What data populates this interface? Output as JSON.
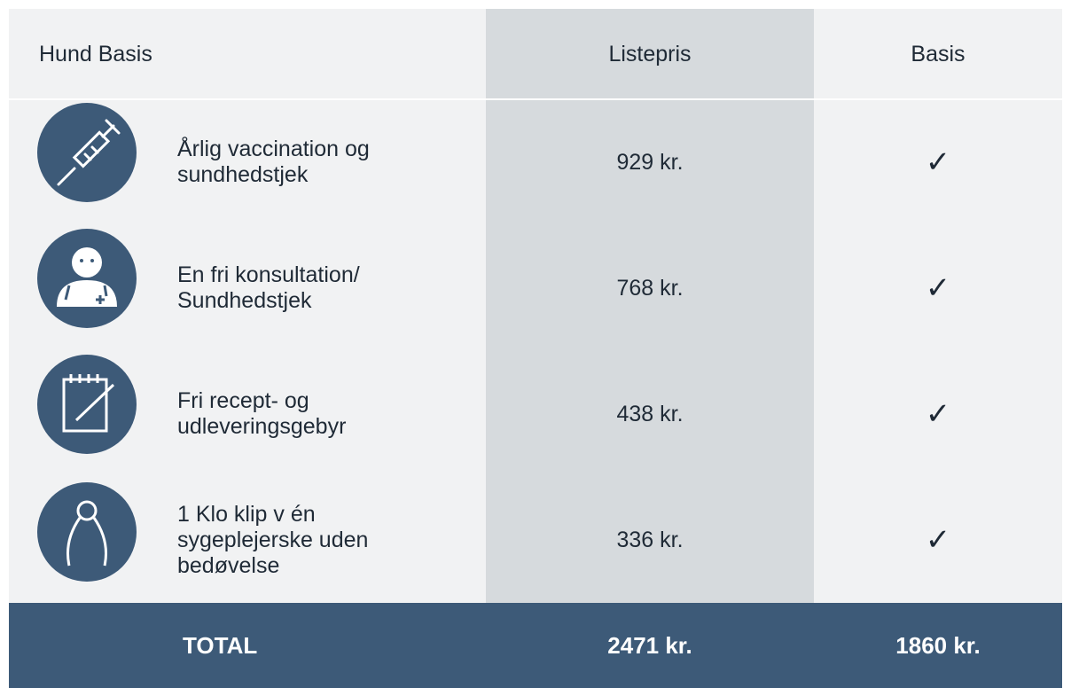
{
  "header": {
    "title": "Hund Basis",
    "columns": [
      "Listepris",
      "Basis"
    ]
  },
  "rows": [
    {
      "label": [
        "Årlig vaccination og",
        "sundhedstjek"
      ],
      "price": "929 kr.",
      "basis": "✓"
    },
    {
      "label": [
        "En fri konsultation/",
        "Sundhedstjek"
      ],
      "price": "768 kr.",
      "basis": "✓"
    },
    {
      "label": [
        "Fri recept- og",
        "udleveringsgebyr"
      ],
      "price": "438 kr.",
      "basis": "✓"
    },
    {
      "label": [
        "1 Klo klip v én",
        "sygeplejerske uden",
        "bedøvelse"
      ],
      "price": "336 kr.",
      "basis": "✓"
    }
  ],
  "footer": {
    "label": "TOTAL",
    "listepris": "2471 kr.",
    "basis": "1860 kr."
  }
}
